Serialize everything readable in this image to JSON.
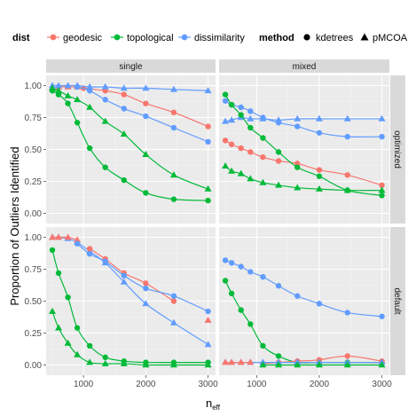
{
  "colors": {
    "geodesic": "#F8766D",
    "topological": "#00BA38",
    "dissimilarity": "#619CFF",
    "panel_bg": "#EBEBEB",
    "strip_bg": "#D9D9D9",
    "grid": "#FFFFFF",
    "dark_point": "#000000"
  },
  "chart_data": {
    "type": "scatter",
    "ylabel": "Proportion of Outliers Identified",
    "xlabel_main": "n",
    "xlabel_sub": "eff",
    "xlim": [
      400,
      3120
    ],
    "ylim": [
      -0.08,
      1.08
    ],
    "xticks": [
      1000,
      2000,
      3000
    ],
    "yticks": [
      0.0,
      0.25,
      0.5,
      0.75,
      1.0
    ],
    "ytick_labels": [
      "0.00",
      "0.25",
      "0.50",
      "0.75",
      "1.00"
    ],
    "columns": [
      "single",
      "mixed"
    ],
    "rows": [
      "optimized",
      "default"
    ],
    "legend": {
      "position": "top",
      "dist_title": "dist",
      "dist_items": [
        "geodesic",
        "topological",
        "dissimilarity"
      ],
      "method_title": "method",
      "method_items": [
        {
          "label": "kdetrees",
          "shape": "circle"
        },
        {
          "label": "pMCOA",
          "shape": "triangle"
        }
      ]
    },
    "panels": [
      {
        "row": "optimized",
        "col": "single",
        "series": [
          {
            "dist": "geodesic",
            "method": "pMCOA",
            "x": [
              500,
              600,
              750,
              900
            ],
            "y": [
              0.98,
              0.99,
              0.99,
              0.99
            ]
          },
          {
            "dist": "geodesic",
            "method": "kdetrees",
            "x": [
              1000,
              1350,
              1650,
              2000,
              2450,
              3000
            ],
            "y": [
              0.98,
              0.96,
              0.93,
              0.86,
              0.79,
              0.68
            ]
          },
          {
            "dist": "dissimilarity",
            "method": "pMCOA",
            "x": [
              500,
              600,
              750,
              900,
              1100,
              1350,
              1650,
              2000,
              2450,
              3000
            ],
            "y": [
              1.0,
              1.0,
              1.0,
              1.0,
              0.99,
              0.99,
              0.98,
              0.98,
              0.97,
              0.96
            ]
          },
          {
            "dist": "dissimilarity",
            "method": "kdetrees",
            "x": [
              900,
              1100,
              1350,
              1650,
              2000,
              2450,
              3000
            ],
            "y": [
              0.99,
              0.96,
              0.89,
              0.82,
              0.76,
              0.67,
              0.56
            ]
          },
          {
            "dist": "topological",
            "method": "kdetrees",
            "x": [
              500,
              600,
              750,
              900,
              1100,
              1350,
              1650,
              2000,
              2450,
              3000
            ],
            "y": [
              0.96,
              0.93,
              0.86,
              0.71,
              0.51,
              0.36,
              0.26,
              0.16,
              0.11,
              0.1
            ]
          },
          {
            "dist": "topological",
            "method": "pMCOA",
            "x": [
              500,
              600,
              750,
              900,
              1100,
              1350,
              1650,
              2000,
              2450,
              3000
            ],
            "y": [
              0.98,
              0.96,
              0.92,
              0.89,
              0.83,
              0.72,
              0.62,
              0.46,
              0.3,
              0.19
            ]
          }
        ]
      },
      {
        "row": "optimized",
        "col": "mixed",
        "series": [
          {
            "dist": "geodesic",
            "method": "kdetrees",
            "x": [
              500,
              600,
              750,
              900,
              1100,
              1350,
              1650,
              2000,
              2450,
              3000
            ],
            "y": [
              0.57,
              0.54,
              0.51,
              0.48,
              0.44,
              0.41,
              0.39,
              0.34,
              0.3,
              0.22
            ]
          },
          {
            "dist": "dissimilarity",
            "method": "pMCOA",
            "x": [
              500,
              600,
              750,
              900,
              1100,
              1350,
              1650,
              2000,
              2450,
              3000
            ],
            "y": [
              0.72,
              0.73,
              0.75,
              0.74,
              0.74,
              0.73,
              0.74,
              0.74,
              0.74,
              0.74
            ]
          },
          {
            "dist": "dissimilarity",
            "method": "kdetrees",
            "x": [
              500,
              600,
              750,
              900,
              1100,
              1350,
              1650,
              2000,
              2450,
              3000
            ],
            "y": [
              0.88,
              0.85,
              0.83,
              0.8,
              0.75,
              0.71,
              0.68,
              0.63,
              0.6,
              0.6
            ]
          },
          {
            "dist": "topological",
            "method": "kdetrees",
            "x": [
              500,
              600,
              750,
              900,
              1100,
              1350,
              1650,
              2000,
              2450,
              3000
            ],
            "y": [
              0.93,
              0.85,
              0.77,
              0.67,
              0.59,
              0.48,
              0.36,
              0.29,
              0.18,
              0.14
            ]
          },
          {
            "dist": "topological",
            "method": "pMCOA",
            "x": [
              500,
              600,
              750,
              900,
              1100,
              1350,
              1650,
              2000,
              2450,
              3000
            ],
            "y": [
              0.37,
              0.33,
              0.31,
              0.27,
              0.24,
              0.22,
              0.2,
              0.19,
              0.18,
              0.18
            ]
          }
        ]
      },
      {
        "row": "default",
        "col": "single",
        "series": [
          {
            "dist": "dissimilarity",
            "method": "pMCOA",
            "x": [
              500,
              600,
              750,
              900,
              1100,
              1350,
              1650,
              2000,
              2450,
              3000
            ],
            "y": [
              1.0,
              1.0,
              0.99,
              0.96,
              0.89,
              0.8,
              0.65,
              0.48,
              0.33,
              0.16
            ]
          },
          {
            "dist": "geodesic",
            "method": "pMCOA",
            "x": [
              500,
              600,
              750,
              900
            ],
            "y": [
              1.0,
              1.0,
              1.0,
              0.98
            ]
          },
          {
            "dist": "geodesic",
            "method": "kdetrees",
            "x": [
              1100,
              1350,
              1650,
              2000,
              2450
            ],
            "y": [
              0.91,
              0.83,
              0.72,
              0.64,
              0.5
            ]
          },
          {
            "dist": "geodesic",
            "method": "pMCOA",
            "x": [
              3000
            ],
            "y": [
              0.35
            ]
          },
          {
            "dist": "dissimilarity",
            "method": "kdetrees",
            "x": [
              900,
              1100,
              1350,
              1650,
              2000,
              2450,
              3000
            ],
            "y": [
              0.95,
              0.87,
              0.81,
              0.7,
              0.6,
              0.54,
              0.42
            ]
          },
          {
            "dist": "topological",
            "method": "kdetrees",
            "x": [
              500,
              600,
              750,
              900,
              1100,
              1350,
              1650,
              2000,
              2450,
              3000
            ],
            "y": [
              0.9,
              0.72,
              0.53,
              0.29,
              0.15,
              0.06,
              0.03,
              0.02,
              0.02,
              0.02
            ]
          },
          {
            "dist": "topological",
            "method": "pMCOA",
            "x": [
              500,
              600,
              750,
              900,
              1100,
              1350,
              1650,
              2000,
              2450,
              3000
            ],
            "y": [
              0.42,
              0.29,
              0.17,
              0.08,
              0.02,
              0.01,
              0.01,
              0.0,
              0.0,
              0.0
            ]
          }
        ]
      },
      {
        "row": "default",
        "col": "mixed",
        "series": [
          {
            "dist": "dissimilarity",
            "method": "kdetrees",
            "x": [
              500,
              600,
              750,
              900,
              1100,
              1350,
              1650,
              2000,
              2450,
              3000
            ],
            "y": [
              0.82,
              0.8,
              0.77,
              0.73,
              0.69,
              0.62,
              0.54,
              0.48,
              0.41,
              0.38
            ]
          },
          {
            "dist": "topological",
            "method": "kdetrees",
            "x": [
              500,
              600,
              750,
              900,
              1100,
              1350,
              1650,
              2000,
              2450,
              3000
            ],
            "y": [
              0.66,
              0.56,
              0.43,
              0.32,
              0.15,
              0.07,
              0.02,
              0.02,
              0.02,
              0.02
            ]
          },
          {
            "dist": "geodesic",
            "method": "kdetrees",
            "x": [
              1100,
              1350,
              1650,
              2000,
              2450,
              3000
            ],
            "y": [
              0.01,
              0.02,
              0.03,
              0.04,
              0.07,
              0.03
            ]
          },
          {
            "dist": "dissimilarity",
            "method": "pMCOA",
            "x": [
              500,
              600,
              750,
              900,
              1100,
              1350,
              1650,
              2000,
              2450,
              3000
            ],
            "y": [
              0.02,
              0.02,
              0.02,
              0.02,
              0.02,
              0.02,
              0.02,
              0.02,
              0.02,
              0.02
            ]
          },
          {
            "dist": "geodesic",
            "method": "pMCOA",
            "x": [
              500,
              600,
              750,
              900
            ],
            "y": [
              0.02,
              0.02,
              0.02,
              0.02
            ]
          },
          {
            "dist": "topological",
            "method": "pMCOA",
            "x": [
              1100,
              1350,
              1650,
              2000,
              2450,
              3000
            ],
            "y": [
              0.0,
              0.0,
              0.0,
              0.0,
              0.0,
              0.0
            ]
          }
        ]
      }
    ]
  }
}
